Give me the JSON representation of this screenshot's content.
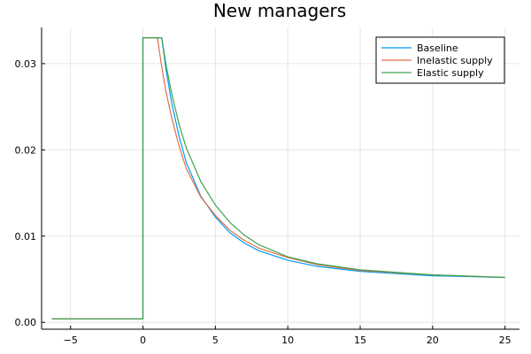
{
  "chart_data": {
    "type": "line",
    "title": "New managers",
    "xlabel": "",
    "ylabel": "",
    "xlim": [
      -7,
      26
    ],
    "ylim": [
      -0.0008,
      0.0342
    ],
    "xticks": [
      -5,
      0,
      5,
      10,
      15,
      20,
      25
    ],
    "xtick_labels": [
      "−5",
      "0",
      "5",
      "10",
      "15",
      "20",
      "25"
    ],
    "yticks": [
      0.0,
      0.01,
      0.02,
      0.03
    ],
    "ytick_labels": [
      "0.00",
      "0.01",
      "0.02",
      "0.03"
    ],
    "grid": true,
    "legend_position": "top-right",
    "series": [
      {
        "name": "Baseline",
        "color": "#009AFA",
        "x": [
          -6.3,
          0,
          0,
          1.3,
          1.6,
          2,
          2.5,
          3,
          4,
          5,
          6,
          7,
          8,
          10,
          12,
          15,
          20,
          25
        ],
        "y": [
          0.0004,
          0.0004,
          0.033,
          0.033,
          0.0292,
          0.0253,
          0.0215,
          0.0185,
          0.0146,
          0.0122,
          0.0104,
          0.0092,
          0.0083,
          0.0072,
          0.0065,
          0.0059,
          0.0054,
          0.0052
        ]
      },
      {
        "name": "Inelastic supply",
        "color": "#E26F46",
        "x": [
          -6.3,
          0,
          0,
          1.0,
          1.3,
          1.6,
          2,
          2.5,
          3,
          4,
          5,
          6,
          7,
          8,
          10,
          12,
          15,
          20,
          25
        ],
        "y": [
          0.0004,
          0.0004,
          0.033,
          0.033,
          0.0296,
          0.0267,
          0.0236,
          0.0204,
          0.0178,
          0.0145,
          0.0124,
          0.0107,
          0.0095,
          0.0086,
          0.0075,
          0.0067,
          0.006,
          0.0055,
          0.0052
        ]
      },
      {
        "name": "Elastic supply",
        "color": "#3DA44D",
        "x": [
          -6.3,
          0,
          0,
          1.3,
          1.6,
          2,
          2.5,
          3,
          4,
          5,
          6,
          7,
          8,
          10,
          12,
          15,
          20,
          25
        ],
        "y": [
          0.0004,
          0.0004,
          0.033,
          0.033,
          0.0298,
          0.0264,
          0.0229,
          0.0202,
          0.0163,
          0.0136,
          0.0116,
          0.0101,
          0.009,
          0.0076,
          0.0068,
          0.0061,
          0.0055,
          0.0052
        ]
      }
    ]
  }
}
